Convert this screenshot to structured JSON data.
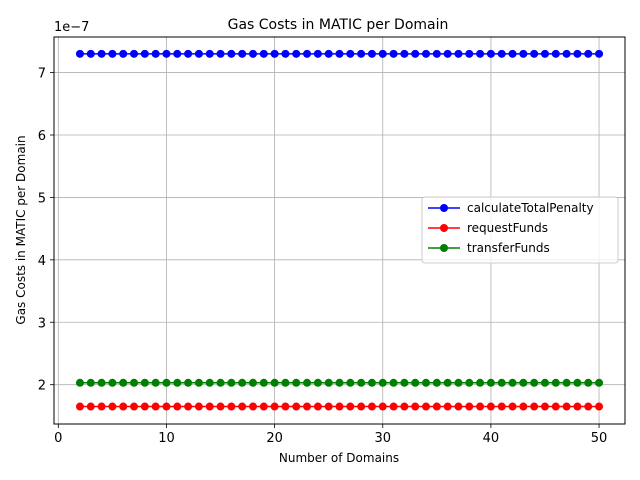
{
  "chart_data": {
    "type": "line",
    "title": "Gas Costs in MATIC per Domain",
    "xlabel": "Number of Domains",
    "ylabel": "Gas Costs in MATIC per Domain",
    "offset_text": "1e−7",
    "x": [
      2,
      3,
      4,
      5,
      6,
      7,
      8,
      9,
      10,
      11,
      12,
      13,
      14,
      15,
      16,
      17,
      18,
      19,
      20,
      21,
      22,
      23,
      24,
      25,
      26,
      27,
      28,
      29,
      30,
      31,
      32,
      33,
      34,
      35,
      36,
      37,
      38,
      39,
      40,
      41,
      42,
      43,
      44,
      45,
      46,
      47,
      48,
      49,
      50
    ],
    "xlim": [
      -0.4,
      52.4
    ],
    "ylim": [
      1.37,
      7.57
    ],
    "x_ticks": [
      0,
      10,
      20,
      30,
      40,
      50
    ],
    "x_tick_labels": [
      "0",
      "10",
      "20",
      "30",
      "40",
      "50"
    ],
    "y_ticks": [
      2,
      3,
      4,
      5,
      6,
      7
    ],
    "y_tick_labels": [
      "2",
      "3",
      "4",
      "5",
      "6",
      "7"
    ],
    "grid": true,
    "legend_position": "center-right",
    "series": [
      {
        "name": "calculateTotalPenalty",
        "color": "#0000ff",
        "value": 7.3
      },
      {
        "name": "requestFunds",
        "color": "#ff0000",
        "value": 1.65
      },
      {
        "name": "transferFunds",
        "color": "#008000",
        "value": 2.03
      }
    ]
  }
}
